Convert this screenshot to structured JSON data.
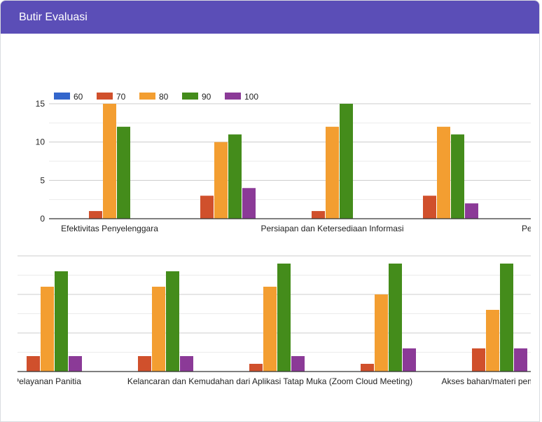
{
  "header": {
    "title": "Butir Evaluasi"
  },
  "chart_data": [
    {
      "type": "bar",
      "legend_position": "top",
      "grid": true,
      "ylim": [
        0,
        15
      ],
      "yticks": [
        "0",
        "5",
        "10",
        "15"
      ],
      "series_names": [
        "60",
        "70",
        "80",
        "90",
        "100"
      ],
      "colors": [
        "#3366cc",
        "#d0502c",
        "#f39e31",
        "#448c1b",
        "#8b3a97"
      ],
      "categories": [
        "Efektivitas Penyelenggara",
        "",
        "Persiapan dan Ketersediaan Informasi",
        "",
        "Pe"
      ],
      "series": [
        {
          "name": "60",
          "values": [
            0,
            0,
            0,
            0,
            null
          ]
        },
        {
          "name": "70",
          "values": [
            1,
            3,
            1,
            3,
            null
          ]
        },
        {
          "name": "80",
          "values": [
            15,
            10,
            12,
            12,
            null
          ]
        },
        {
          "name": "90",
          "values": [
            12,
            11,
            15,
            11,
            null
          ]
        },
        {
          "name": "100",
          "values": [
            0,
            4,
            0,
            2,
            null
          ]
        }
      ]
    },
    {
      "type": "bar",
      "grid": true,
      "ylim": [
        0,
        15
      ],
      "categories": [
        "Pelayanan Panitia",
        "",
        "Kelancaran dan Kemudahan dari Aplikasi Tatap Muka (Zoom Cloud Meeting)",
        "",
        "Akses bahan/materi pembe"
      ],
      "series": [
        {
          "name": "60",
          "values": [
            0,
            0,
            0,
            0,
            0
          ]
        },
        {
          "name": "70",
          "values": [
            2,
            2,
            1,
            1,
            3
          ]
        },
        {
          "name": "80",
          "values": [
            11,
            11,
            11,
            10,
            8
          ]
        },
        {
          "name": "90",
          "values": [
            13,
            13,
            14,
            14,
            14
          ]
        },
        {
          "name": "100",
          "values": [
            2,
            2,
            2,
            3,
            3
          ]
        }
      ]
    }
  ]
}
